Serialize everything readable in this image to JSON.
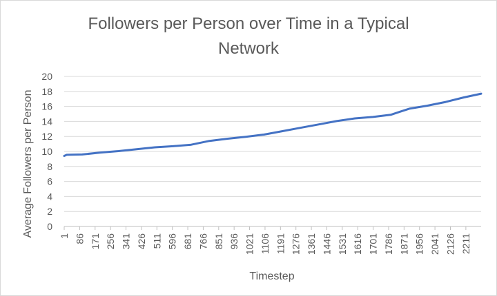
{
  "chart_data": {
    "type": "line",
    "title": "Followers per Person over Time in a Typical Network",
    "title_lines": [
      "Followers per Person over Time in a Typical",
      "Network"
    ],
    "xlabel": "Timestep",
    "ylabel": "Average Followers per Person",
    "ylim": [
      0,
      20
    ],
    "yticks": [
      0,
      2,
      4,
      6,
      8,
      10,
      12,
      14,
      16,
      18,
      20
    ],
    "xticks": [
      1,
      86,
      171,
      256,
      341,
      426,
      511,
      596,
      681,
      766,
      851,
      936,
      1021,
      1106,
      1191,
      1276,
      1361,
      1446,
      1531,
      1616,
      1701,
      1786,
      1871,
      1956,
      2041,
      2126,
      2211
    ],
    "xlim": [
      1,
      2295
    ],
    "grid": "horizontal",
    "legend": "none",
    "series": [
      {
        "color": "#4472C4",
        "x": [
          1,
          15,
          100,
          200,
          300,
          400,
          500,
          600,
          700,
          800,
          900,
          1000,
          1100,
          1200,
          1300,
          1400,
          1500,
          1600,
          1700,
          1800,
          1850,
          1900,
          2000,
          2100,
          2200,
          2295
        ],
        "y": [
          9.4,
          9.55,
          9.6,
          9.85,
          10.05,
          10.3,
          10.55,
          10.7,
          10.9,
          11.4,
          11.7,
          11.95,
          12.25,
          12.7,
          13.15,
          13.6,
          14.05,
          14.4,
          14.6,
          14.9,
          15.3,
          15.7,
          16.1,
          16.6,
          17.2,
          17.7
        ]
      }
    ]
  }
}
